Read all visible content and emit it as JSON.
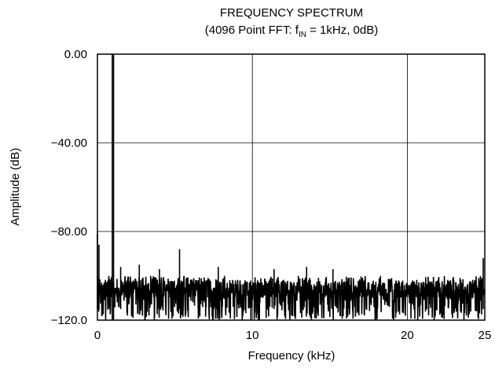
{
  "chart_data": {
    "type": "line",
    "title": "FREQUENCY SPECTRUM",
    "subtitle": {
      "prefix": "(4096 Point FFT: f",
      "subscript": "IN",
      "suffix": " = 1kHz, 0dB)"
    },
    "xlabel": "Frequency (kHz)",
    "ylabel": "Amplitude (dB)",
    "xlim": [
      0,
      25
    ],
    "ylim": [
      -120,
      0
    ],
    "x_ticks": [
      {
        "value": 0,
        "label": "0"
      },
      {
        "value": 10,
        "label": "10"
      },
      {
        "value": 20,
        "label": "20"
      },
      {
        "value": 25,
        "label": "25"
      }
    ],
    "y_ticks": [
      {
        "value": 0,
        "label": "0.00"
      },
      {
        "value": -40,
        "label": "−40.00"
      },
      {
        "value": -80,
        "label": "−80.00"
      },
      {
        "value": -120,
        "label": "−120.0"
      }
    ],
    "grid": true,
    "series": [
      {
        "noise_floor_range_db": [
          -120,
          -100
        ],
        "fundamental": {
          "x": 1,
          "y": 0
        },
        "spurs": [
          {
            "x": 0,
            "y": -81
          },
          {
            "x": 0.1,
            "y": -86
          },
          {
            "x": 1.5,
            "y": -96
          },
          {
            "x": 2.7,
            "y": -95
          },
          {
            "x": 4.0,
            "y": -97
          },
          {
            "x": 5.3,
            "y": -88
          },
          {
            "x": 7.8,
            "y": -96
          },
          {
            "x": 11.4,
            "y": -97
          },
          {
            "x": 13.5,
            "y": -96
          },
          {
            "x": 15.2,
            "y": -97
          },
          {
            "x": 24.9,
            "y": -92
          }
        ]
      }
    ]
  }
}
